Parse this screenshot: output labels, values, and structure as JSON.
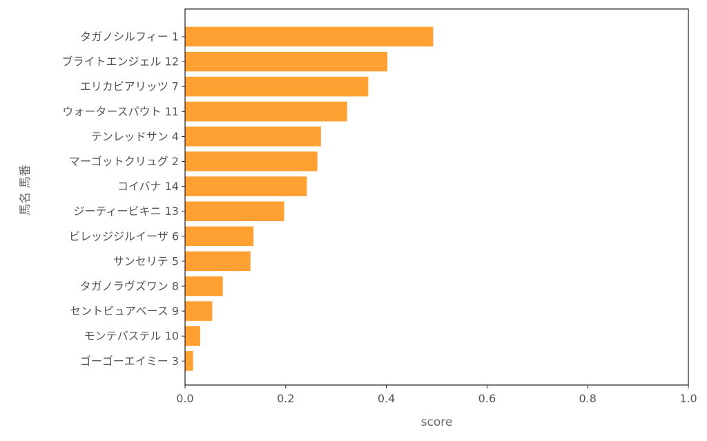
{
  "chart_data": {
    "type": "bar",
    "orientation": "horizontal",
    "categories": [
      "タガノシルフィー 1",
      "ブライトエンジェル 12",
      "エリカビアリッツ 7",
      "ウォータースパウト 11",
      "テンレッドサン 4",
      "マーゴットクリュグ 2",
      "コイバナ 14",
      "ジーティービキニ 13",
      "ビレッジジルイーザ 6",
      "サンセリテ 5",
      "タガノラヴズワン 8",
      "セントピュアベース 9",
      "モンテパステル 10",
      "ゴーゴーエイミー 3"
    ],
    "values": [
      0.493,
      0.402,
      0.364,
      0.322,
      0.27,
      0.263,
      0.242,
      0.197,
      0.136,
      0.13,
      0.075,
      0.054,
      0.03,
      0.016
    ],
    "xlabel": "score",
    "ylabel": "馬名 馬番",
    "xlim": [
      0,
      1.0
    ],
    "xticks": [
      "0.0",
      "0.2",
      "0.4",
      "0.6",
      "0.8",
      "1.0"
    ],
    "bar_color": "#ffa033",
    "grid": false,
    "legend": "none"
  }
}
